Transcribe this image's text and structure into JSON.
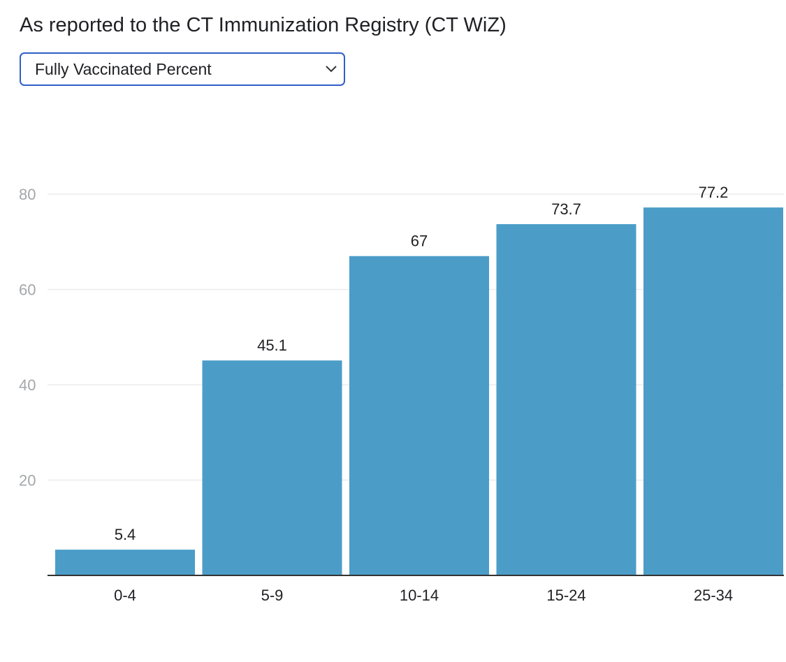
{
  "header": {
    "subtitle": "As reported to the CT Immunization Registry (CT WiZ)"
  },
  "metric_select": {
    "selected": "Fully Vaccinated Percent",
    "icon": "chevron-down-icon"
  },
  "colors": {
    "bar": "#4b9dc8",
    "grid": "#ececec",
    "axis": "#333333",
    "select_border": "#2f5fc9"
  },
  "chart_data": {
    "type": "bar",
    "categories": [
      "0-4",
      "5-9",
      "10-14",
      "15-24",
      "25-34"
    ],
    "values": [
      5.4,
      45.1,
      67,
      73.7,
      77.2
    ],
    "value_labels": [
      "5.4",
      "45.1",
      "67",
      "73.7",
      "77.2"
    ],
    "ylim": [
      0,
      80
    ],
    "yticks": [
      20,
      40,
      60,
      80
    ],
    "grid": true,
    "legend": "none",
    "title": "",
    "xlabel": "",
    "ylabel": ""
  }
}
